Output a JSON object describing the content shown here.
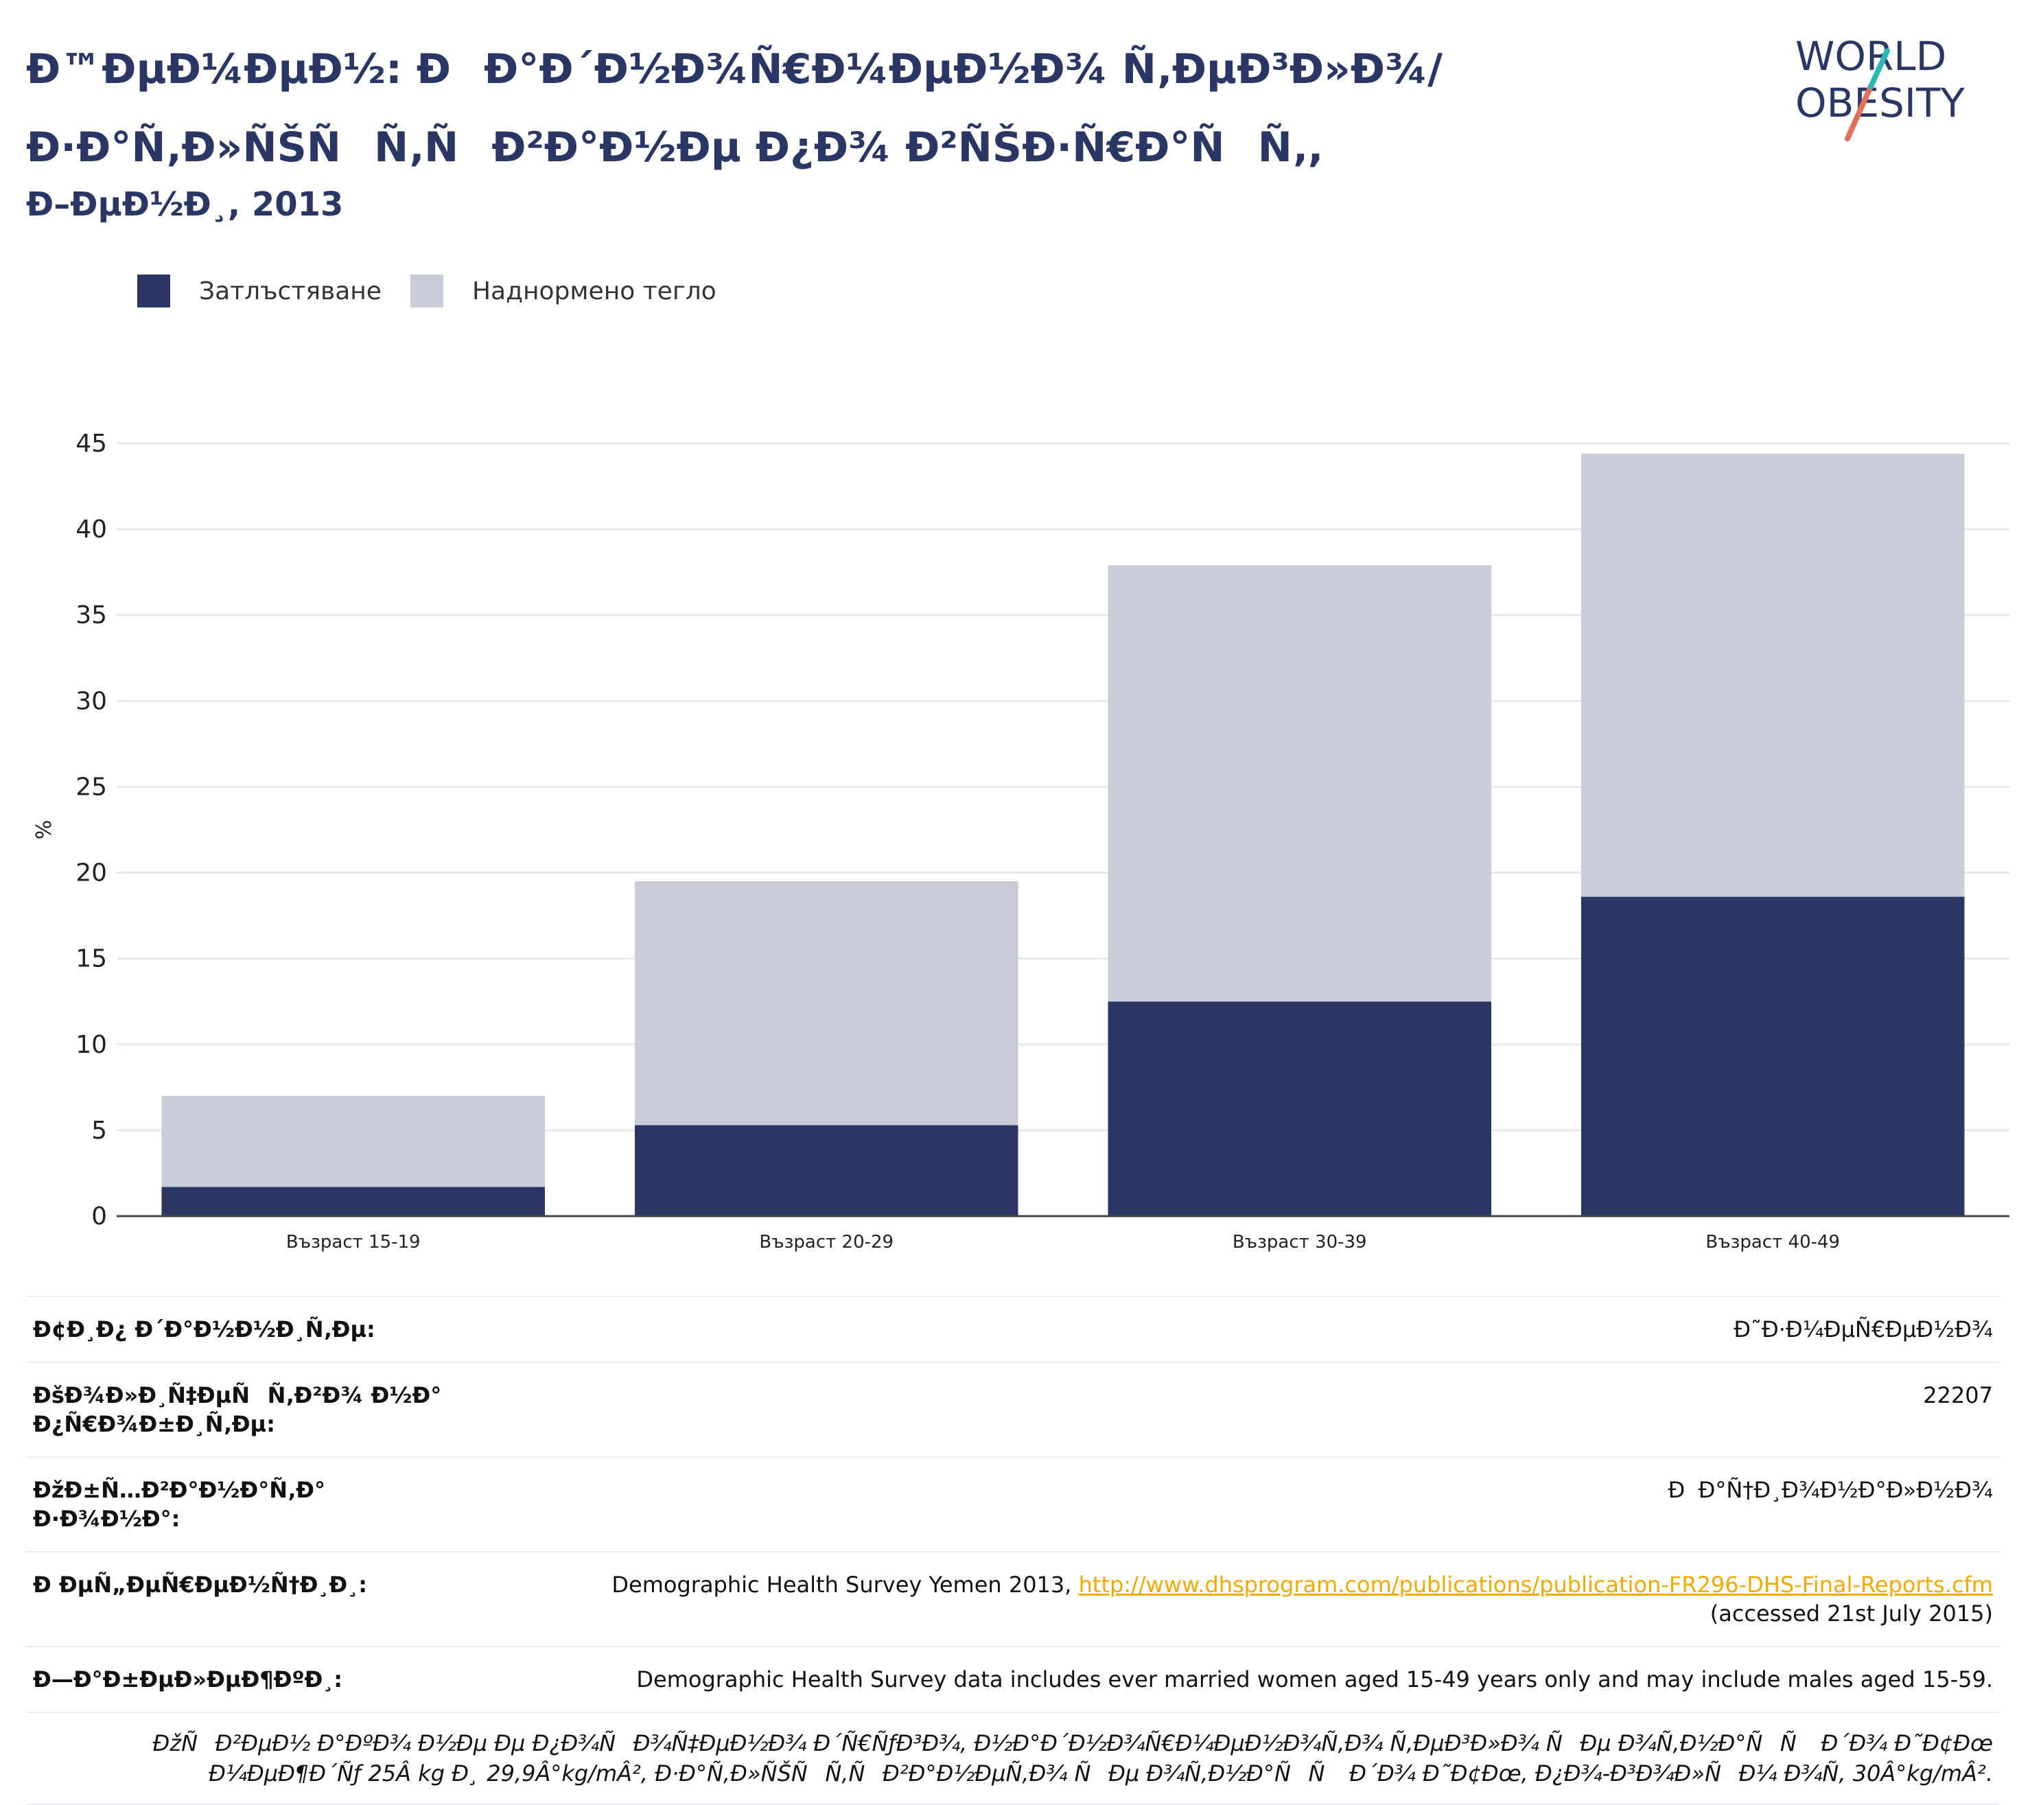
{
  "header": {
    "title": "Ð™ÐµÐ¼ÐµÐ½: ÐÐ°Ð´Ð½Ð¾Ñ€Ð¼ÐµÐ½Ð¾ Ñ‚ÐµÐ³Ð»Ð¾/Ð·Ð°Ñ‚Ð»ÑŠÑÑ‚ÑÐ²Ð°Ð½Ðµ Ð¿Ð¾ Ð²ÑŠÐ·Ñ€Ð°ÑÑ‚,",
    "subtitle": "Ð–ÐµÐ½Ð¸, 2013"
  },
  "logo": {
    "line1": "WORLD",
    "line2": "OBESITY"
  },
  "legend": [
    {
      "label": "Затлъстяване",
      "color": "#2a3764"
    },
    {
      "label": "Наднормено тегло",
      "color": "#cacdd9"
    }
  ],
  "chart_data": {
    "type": "bar",
    "stacked": true,
    "categories": [
      "Възраст 15-19",
      "Възраст 20-29",
      "Възраст 30-39",
      "Възраст 40-49"
    ],
    "series": [
      {
        "name": "Затлъстяване",
        "values": [
          1.7,
          5.3,
          12.5,
          18.6
        ],
        "color": "#2a3764"
      },
      {
        "name": "Наднормено тегло",
        "values": [
          5.3,
          14.2,
          25.4,
          25.8
        ],
        "color": "#cacdd9"
      }
    ],
    "ylabel": "%",
    "ylim": [
      0,
      45
    ],
    "yticks": [
      0,
      5,
      10,
      15,
      20,
      25,
      30,
      35,
      40,
      45
    ],
    "grid": true,
    "legend_position": "top-left"
  },
  "table": [
    {
      "label": "Ð¢Ð¸Ð¿ Ð´Ð°Ð½Ð½Ð¸Ñ‚Ðµ:",
      "value": "Ð˜Ð·Ð¼ÐµÑ€ÐµÐ½Ð¾"
    },
    {
      "label": "ÐšÐ¾Ð»Ð¸Ñ‡ÐµÑÑ‚Ð²Ð¾ Ð½Ð° Ð¿Ñ€Ð¾Ð±Ð¸Ñ‚Ðµ:",
      "value": "22207"
    },
    {
      "label": "ÐžÐ±Ñ…Ð²Ð°Ð½Ð°Ñ‚Ð° Ð·Ð¾Ð½Ð°:",
      "value": "ÐÐ°Ñ†Ð¸Ð¾Ð½Ð°Ð»Ð½Ð¾"
    },
    {
      "label": "Ð ÐµÑ„ÐµÑ€ÐµÐ½Ñ†Ð¸Ð¸:",
      "value_prefix": "Demographic Health Survey Yemen 2013, ",
      "link": "http://www.dhsprogram.com/publications/publication-FR296-DHS-Final-Reports.cfm",
      "value_suffix": "(accessed 21st July 2015)"
    },
    {
      "label": "Ð—Ð°Ð±ÐµÐ»ÐµÐ¶ÐºÐ¸:",
      "value": "Demographic Health Survey data includes ever married women aged 15-49 years only and may include males aged 15-59."
    }
  ],
  "footnote": "ÐžÑÐ²ÐµÐ½ Ð°ÐºÐ¾ Ð½Ðµ Ðµ Ð¿Ð¾ÑÐ¾Ñ‡ÐµÐ½Ð¾ Ð´Ñ€ÑƒÐ³Ð¾, Ð½Ð°Ð´Ð½Ð¾Ñ€Ð¼ÐµÐ½Ð¾Ñ‚Ð¾ Ñ‚ÐµÐ³Ð»Ð¾ ÑÐµ Ð¾Ñ‚Ð½Ð°ÑÑ Ð´Ð¾ Ð˜Ð¢Ðœ Ð¼ÐµÐ¶Ð´Ñƒ 25Â kg Ð¸ 29,9Â°kg/mÂ², Ð·Ð°Ñ‚Ð»ÑŠÑÑ‚ÑÐ²Ð°Ð½ÐµÑ‚Ð¾ ÑÐµ Ð¾Ñ‚Ð½Ð°ÑÑ Ð´Ð¾ Ð˜Ð¢Ðœ, Ð¿Ð¾-Ð³Ð¾Ð»ÑÐ¼ Ð¾Ñ‚ 30Â°kg/mÂ²."
}
